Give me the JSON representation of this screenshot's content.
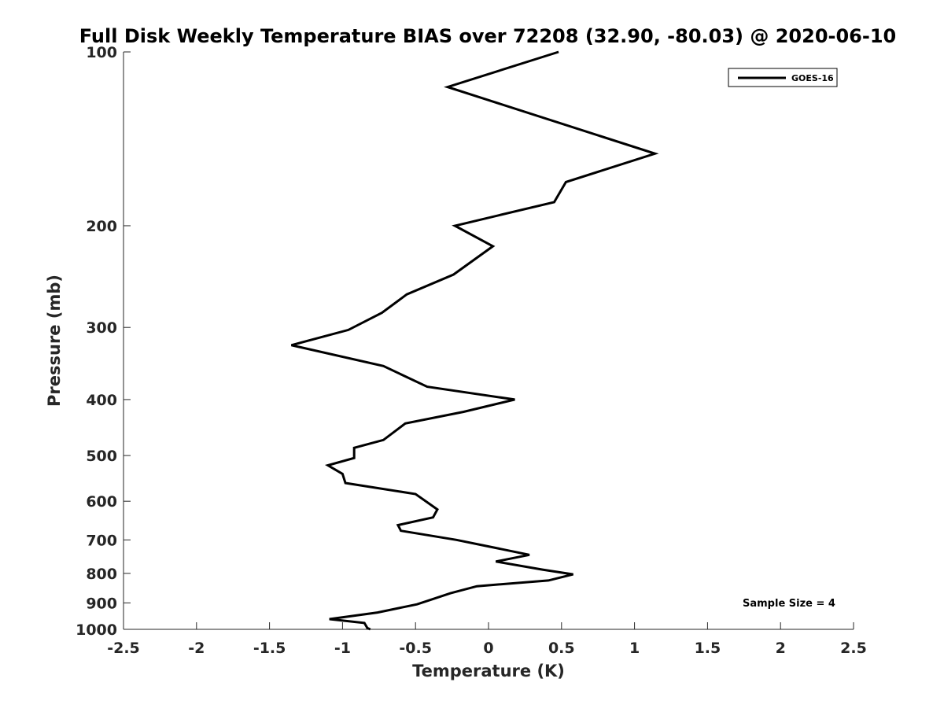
{
  "chart_data": {
    "type": "line",
    "title": "Full Disk Weekly Temperature BIAS over 72208 (32.90, -80.03) @ 2020-06-10",
    "xlabel": "Temperature (K)",
    "ylabel": "Pressure (mb)",
    "xlim": [
      -2.5,
      2.5
    ],
    "ylim": [
      100,
      1000
    ],
    "y_scale": "log",
    "y_reversed": true,
    "grid": false,
    "x_ticks": [
      -2.5,
      -2,
      -1.5,
      -1,
      -0.5,
      0,
      0.5,
      1,
      1.5,
      2,
      2.5
    ],
    "x_tick_labels": [
      "-2.5",
      "-2",
      "-1.5",
      "-1",
      "-0.5",
      "0",
      "0.5",
      "1",
      "1.5",
      "2",
      "2.5"
    ],
    "y_ticks": [
      100,
      200,
      300,
      400,
      500,
      600,
      700,
      800,
      900,
      1000
    ],
    "y_tick_labels": [
      "100",
      "200",
      "300",
      "400",
      "500",
      "600",
      "700",
      "800",
      "900",
      "1000"
    ],
    "legend": {
      "position": "top-right",
      "entries": [
        "GOES-16"
      ]
    },
    "annotation": "Sample Size = 4",
    "series": [
      {
        "name": "GOES-16",
        "color": "#000000",
        "x": [
          0.48,
          -0.28,
          1.14,
          0.53,
          0.45,
          -0.23,
          0.03,
          -0.24,
          -0.56,
          -0.73,
          -0.96,
          -1.35,
          -0.72,
          -0.42,
          0.18,
          -0.17,
          -0.57,
          -0.72,
          -0.92,
          -0.92,
          -1.1,
          -1.0,
          -0.98,
          -0.5,
          -0.35,
          -0.38,
          -0.62,
          -0.6,
          -0.22,
          -0.04,
          0.28,
          0.05,
          0.37,
          0.58,
          0.41,
          -0.08,
          -0.26,
          -0.49,
          -0.76,
          -1.09,
          -0.85,
          -0.83,
          -0.77
        ],
        "y": [
          100,
          115,
          150,
          168,
          182,
          200,
          217,
          243,
          263,
          283,
          303,
          322,
          350,
          380,
          400,
          420,
          440,
          470,
          485,
          505,
          520,
          538,
          558,
          583,
          620,
          640,
          660,
          675,
          700,
          715,
          743,
          763,
          788,
          803,
          823,
          842,
          866,
          905,
          935,
          960,
          975,
          995,
          1010
        ]
      }
    ]
  }
}
